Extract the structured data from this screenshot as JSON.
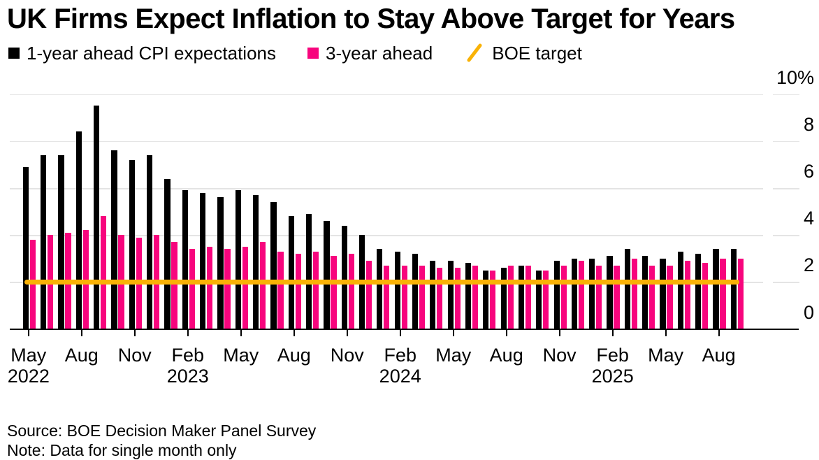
{
  "title": "UK Firms Expect Inflation to Stay Above Target for Years",
  "legend": [
    {
      "label": "1-year ahead CPI expectations",
      "swatch": "square",
      "color": "#000000"
    },
    {
      "label": "3-year ahead",
      "swatch": "square",
      "color": "#f7057d"
    },
    {
      "label": "BOE target",
      "swatch": "slash",
      "color": "#f9b206"
    }
  ],
  "source": "Source: BOE Decision Maker Panel Survey",
  "note": "Note: Data for single month only",
  "colors": {
    "bar_1yr": "#000000",
    "bar_3yr": "#f7057d",
    "target": "#f9b206",
    "gridline": "#e4e4e4",
    "axis": "#000000"
  },
  "chart_data": {
    "type": "bar",
    "title": "UK Firms Expect Inflation to Stay Above Target for Years",
    "categories": [
      "May 2022",
      "Jun 2022",
      "Jul 2022",
      "Aug 2022",
      "Sep 2022",
      "Oct 2022",
      "Nov 2022",
      "Dec 2022",
      "Jan 2023",
      "Feb 2023",
      "Mar 2023",
      "Apr 2023",
      "May 2023",
      "Jun 2023",
      "Jul 2023",
      "Aug 2023",
      "Sep 2023",
      "Oct 2023",
      "Nov 2023",
      "Dec 2023",
      "Jan 2024",
      "Feb 2024",
      "Mar 2024",
      "Apr 2024",
      "May 2024",
      "Jun 2024",
      "Jul 2024",
      "Aug 2024",
      "Sep 2024",
      "Oct 2024",
      "Nov 2024",
      "Dec 2024",
      "Jan 2025",
      "Feb 2025",
      "Mar 2025",
      "Apr 2025",
      "May 2025",
      "Jun 2025",
      "Jul 2025",
      "Aug 2025",
      "Sep 2025"
    ],
    "series": [
      {
        "name": "1-year ahead CPI expectations",
        "color": "#000000",
        "values": [
          6.9,
          7.4,
          7.4,
          8.4,
          9.5,
          7.6,
          7.2,
          7.4,
          6.4,
          5.9,
          5.8,
          5.6,
          5.9,
          5.7,
          5.4,
          4.8,
          4.9,
          4.6,
          4.4,
          4.0,
          3.4,
          3.3,
          3.2,
          2.9,
          2.9,
          2.8,
          2.5,
          2.6,
          2.7,
          2.5,
          2.9,
          3.0,
          3.0,
          3.1,
          3.4,
          3.1,
          3.0,
          3.3,
          3.2,
          3.4,
          3.4
        ]
      },
      {
        "name": "3-year ahead",
        "color": "#f7057d",
        "values": [
          3.8,
          4.0,
          4.1,
          4.2,
          4.8,
          4.0,
          3.9,
          4.0,
          3.7,
          3.4,
          3.5,
          3.4,
          3.5,
          3.7,
          3.3,
          3.2,
          3.3,
          3.1,
          3.2,
          2.9,
          2.7,
          2.7,
          2.7,
          2.6,
          2.6,
          2.7,
          2.5,
          2.7,
          2.7,
          2.5,
          2.7,
          2.9,
          2.7,
          2.7,
          3.0,
          2.7,
          2.7,
          2.9,
          2.8,
          3.0,
          3.0
        ]
      }
    ],
    "target_line": {
      "label": "BOE target",
      "value": 2,
      "color": "#f9b206"
    },
    "y_axis": {
      "side": "right",
      "ticks": [
        0,
        2,
        4,
        6,
        8,
        10
      ],
      "tick_labels": [
        "0",
        "2",
        "4",
        "6",
        "8",
        "10%"
      ],
      "unit": "%",
      "ylim": [
        0,
        10.5
      ],
      "grid": true
    },
    "x_ticks": [
      {
        "index": 0,
        "label": "May",
        "year": "2022"
      },
      {
        "index": 3,
        "label": "Aug"
      },
      {
        "index": 6,
        "label": "Nov"
      },
      {
        "index": 9,
        "label": "Feb",
        "year": "2023"
      },
      {
        "index": 12,
        "label": "May"
      },
      {
        "index": 15,
        "label": "Aug"
      },
      {
        "index": 18,
        "label": "Nov"
      },
      {
        "index": 21,
        "label": "Feb",
        "year": "2024"
      },
      {
        "index": 24,
        "label": "May"
      },
      {
        "index": 27,
        "label": "Aug"
      },
      {
        "index": 30,
        "label": "Nov"
      },
      {
        "index": 33,
        "label": "Feb",
        "year": "2025"
      },
      {
        "index": 36,
        "label": "May"
      },
      {
        "index": 39,
        "label": "Aug"
      }
    ],
    "legend_position": "top"
  }
}
